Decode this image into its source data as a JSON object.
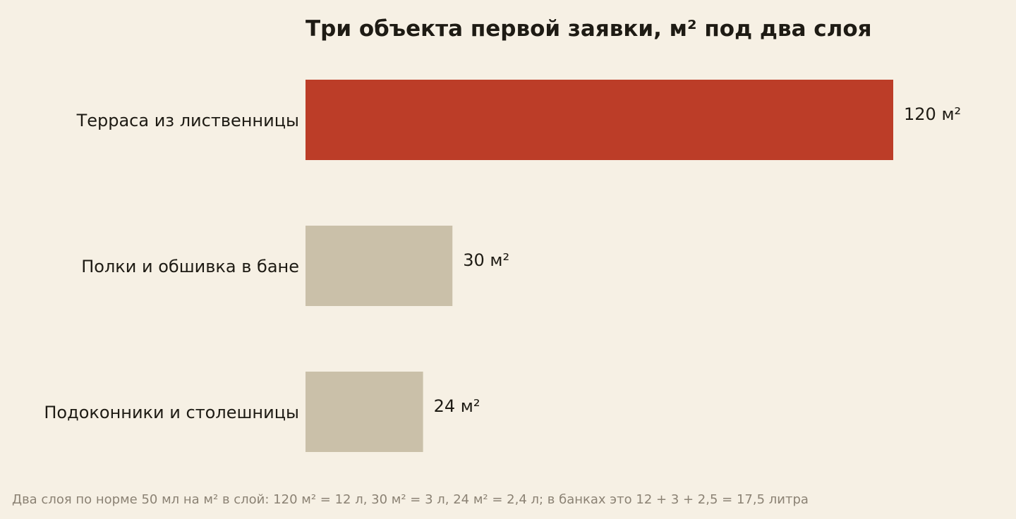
{
  "chart_data": {
    "type": "bar",
    "orientation": "horizontal",
    "title": "Три объекта первой заявки, м² под два слоя",
    "xlabel": "",
    "ylabel": "",
    "categories": [
      "Терраса из лиственницы",
      "Полки и обшивка в бане",
      "Подоконники и столешницы"
    ],
    "values": [
      120,
      30,
      24
    ],
    "value_labels": [
      "120 м²",
      "30 м²",
      "24 м²"
    ],
    "xlim": [
      0,
      120
    ],
    "grid": false,
    "legend": "none",
    "bar_colors": [
      "#bc3d28",
      "#cac0a9",
      "#cac0a9"
    ],
    "footnote": "Два слоя по норме 50 мл на м² в слой: 120 м² = 12 л, 30 м² = 3 л, 24 м² = 2,4 л; в банках это 12 + 3 + 2,5 = 17,5 литра"
  },
  "colors": {
    "background": "#f6f0e4",
    "text": "#1e1b14",
    "footnote": "#8b8274",
    "accent": "#bc3d28",
    "muted_bar": "#cac0a9"
  }
}
